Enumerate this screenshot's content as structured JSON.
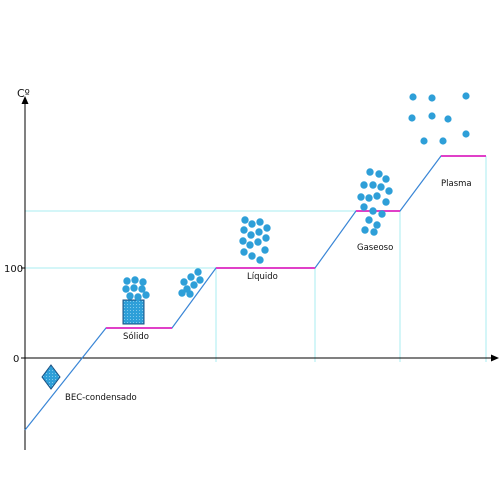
{
  "axis": {
    "y_label": "Cº",
    "ticks": [
      "100",
      "0"
    ]
  },
  "phases": [
    {
      "id": "bec",
      "label": "BEC-condensado"
    },
    {
      "id": "solid",
      "label": "Sólido"
    },
    {
      "id": "liquid",
      "label": "Líquido"
    },
    {
      "id": "gas",
      "label": "Gaseoso"
    },
    {
      "id": "plasma",
      "label": "Plasma"
    }
  ],
  "colors": {
    "curve": "#3a86d6",
    "plateau": "#e040c8",
    "guide": "#a8ecf2",
    "particle": "#2e9fd8",
    "axis": "#000000"
  }
}
